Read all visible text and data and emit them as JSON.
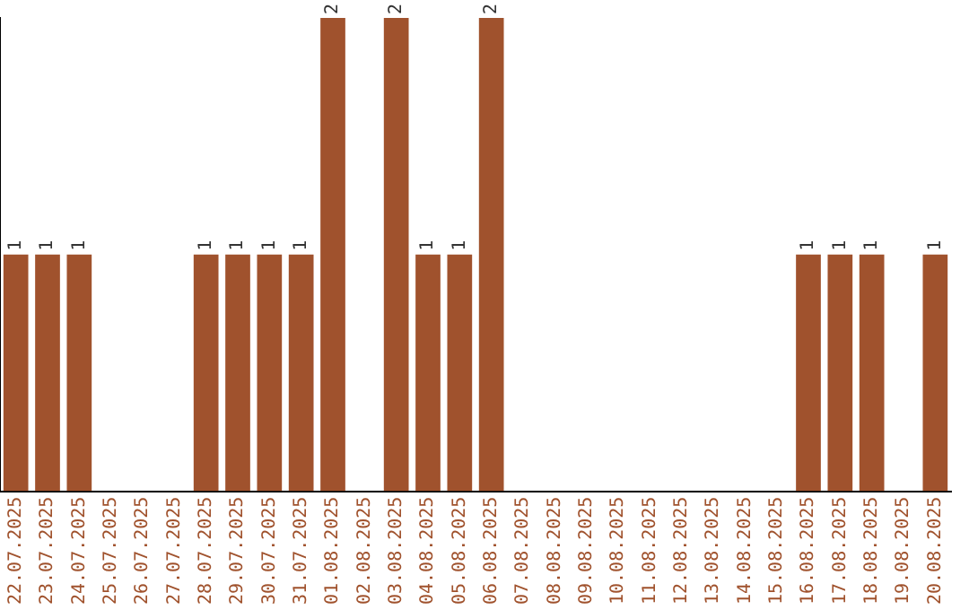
{
  "chart_data": {
    "type": "bar",
    "categories": [
      "22.07.2025",
      "23.07.2025",
      "24.07.2025",
      "25.07.2025",
      "26.07.2025",
      "27.07.2025",
      "28.07.2025",
      "29.07.2025",
      "30.07.2025",
      "31.07.2025",
      "01.08.2025",
      "02.08.2025",
      "03.08.2025",
      "04.08.2025",
      "05.08.2025",
      "06.08.2025",
      "07.08.2025",
      "08.08.2025",
      "09.08.2025",
      "10.08.2025",
      "11.08.2025",
      "12.08.2025",
      "13.08.2025",
      "14.08.2025",
      "15.08.2025",
      "16.08.2025",
      "17.08.2025",
      "18.08.2025",
      "19.08.2025",
      "20.08.2025"
    ],
    "values": [
      1,
      1,
      1,
      0,
      0,
      0,
      1,
      1,
      1,
      1,
      2,
      0,
      2,
      1,
      1,
      2,
      0,
      0,
      0,
      0,
      0,
      0,
      0,
      0,
      0,
      1,
      1,
      1,
      0,
      1
    ],
    "value_labels": [
      "1",
      "1",
      "1",
      null,
      null,
      null,
      "1",
      "1",
      "1",
      "1",
      "2",
      null,
      "2",
      "1",
      "1",
      "2",
      null,
      null,
      null,
      null,
      null,
      null,
      null,
      null,
      null,
      "1",
      "1",
      "1",
      null,
      "1"
    ],
    "color": "#a0522d",
    "grid": false,
    "legend": false,
    "tick_labels": "x"
  }
}
